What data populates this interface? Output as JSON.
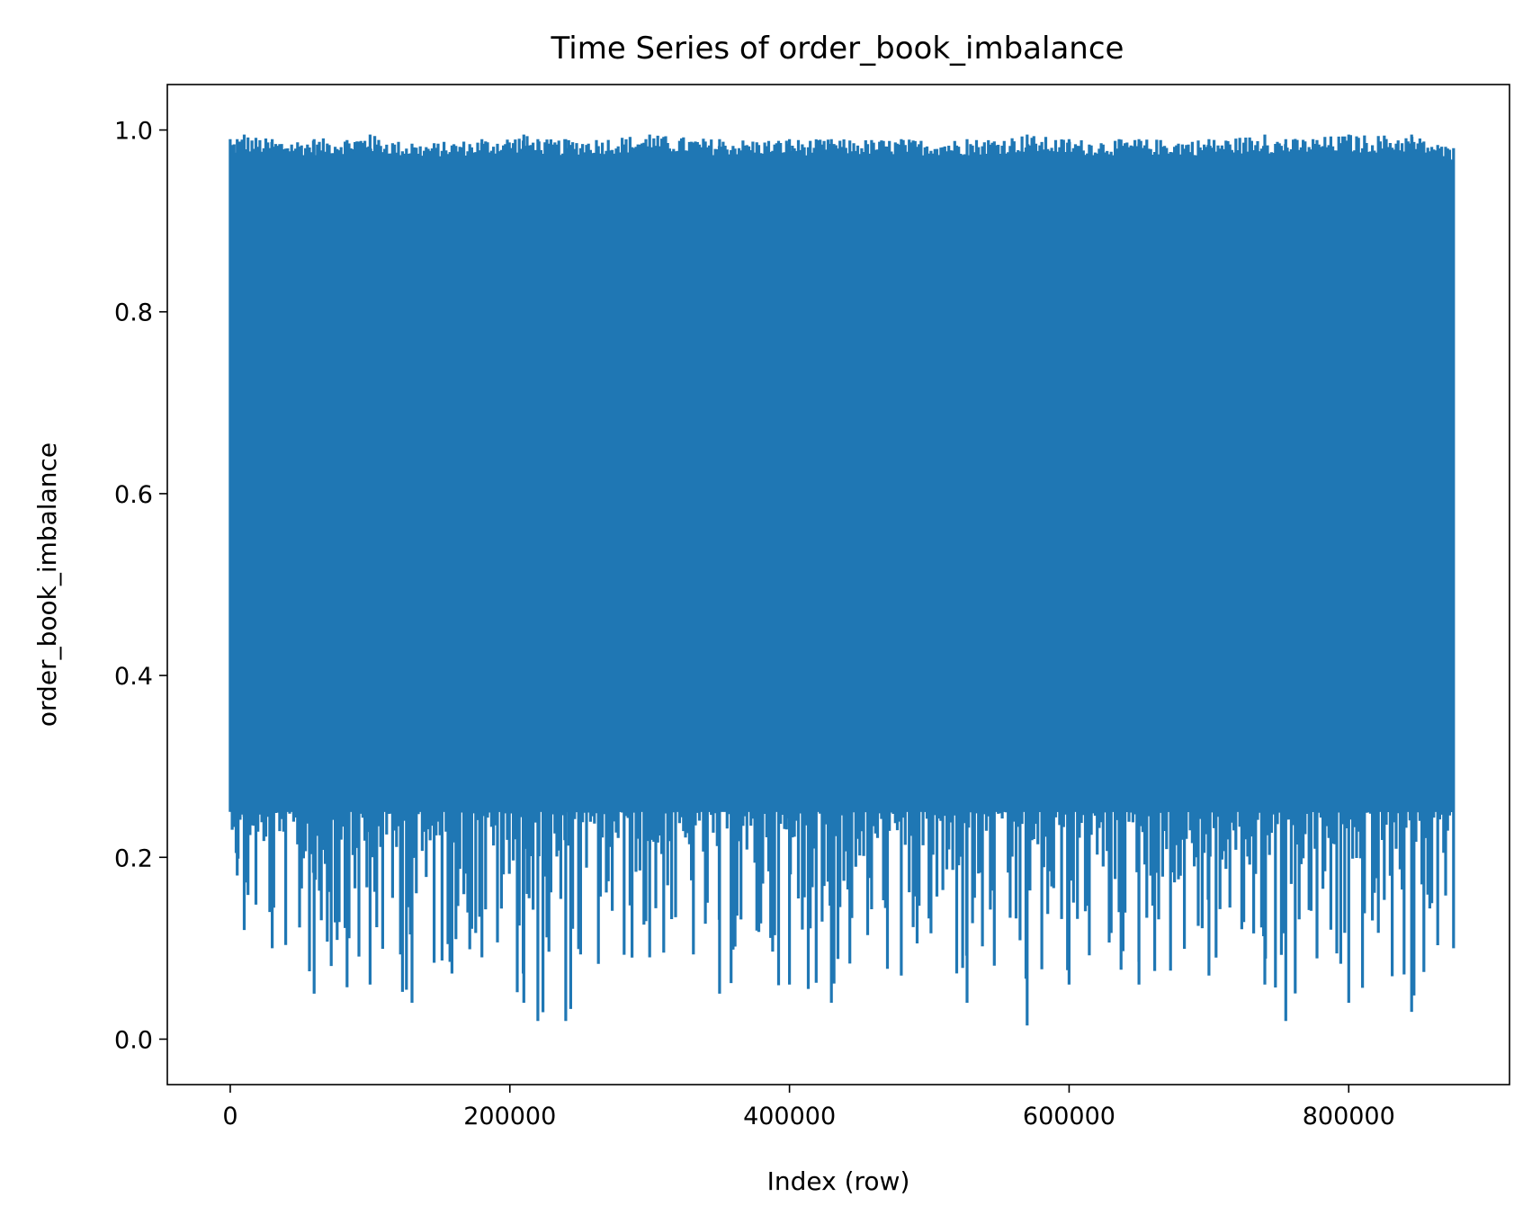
{
  "chart_data": {
    "type": "line",
    "title": "Time Series of order_book_imbalance",
    "xlabel": "Index (row)",
    "ylabel": "order_book_imbalance",
    "xlim": [
      -45000,
      915000
    ],
    "ylim": [
      -0.05,
      1.05
    ],
    "x_ticks": [
      0,
      200000,
      400000,
      600000,
      800000
    ],
    "x_tick_labels": [
      "0",
      "200000",
      "400000",
      "600000",
      "800000"
    ],
    "y_ticks": [
      0.0,
      0.2,
      0.4,
      0.6,
      0.8,
      1.0
    ],
    "y_tick_labels": [
      "0.0",
      "0.2",
      "0.4",
      "0.6",
      "0.8",
      "1.0"
    ],
    "grid": false,
    "legend": "none",
    "series": [
      {
        "color": "#1f77b4",
        "x_range": [
          0,
          875000
        ],
        "typical_range": [
          0.25,
          0.95
        ],
        "envelope": {
          "x": [
            0,
            5000,
            10000,
            30000,
            60000,
            100000,
            130000,
            180000,
            210000,
            220000,
            240000,
            300000,
            350000,
            400000,
            430000,
            480000,
            527000,
            570000,
            600000,
            650000,
            700000,
            740000,
            755000,
            800000,
            845000,
            875000
          ],
          "max": [
            0.99,
            0.99,
            0.995,
            0.99,
            0.99,
            0.995,
            0.985,
            0.99,
            0.995,
            0.99,
            0.99,
            0.995,
            0.99,
            0.99,
            0.99,
            0.99,
            0.99,
            0.995,
            0.99,
            0.99,
            0.99,
            0.995,
            0.99,
            0.995,
            0.995,
            0.98
          ],
          "min": [
            0.25,
            0.18,
            0.12,
            0.1,
            0.05,
            0.06,
            0.04,
            0.09,
            0.04,
            0.02,
            0.02,
            0.09,
            0.05,
            0.06,
            0.04,
            0.07,
            0.04,
            0.015,
            0.06,
            0.06,
            0.07,
            0.06,
            0.02,
            0.04,
            0.03,
            0.1
          ]
        }
      }
    ]
  }
}
